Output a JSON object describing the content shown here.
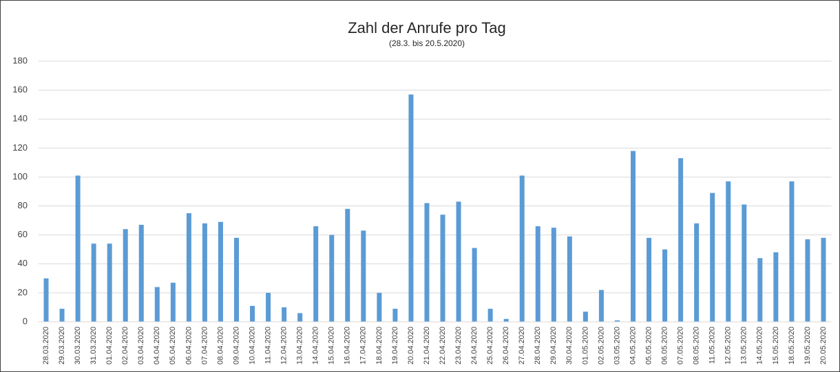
{
  "chart_data": {
    "type": "bar",
    "title": "Zahl der Anrufe pro Tag",
    "subtitle": "(28.3. bis 20.5.2020)",
    "categories": [
      "28.03.2020",
      "29.03.2020",
      "30.03.2020",
      "31.03.2020",
      "01.04.2020",
      "02.04.2020",
      "03.04.2020",
      "04.04.2020",
      "05.04.2020",
      "06.04.2020",
      "07.04.2020",
      "08.04.2020",
      "09.04.2020",
      "10.04.2020",
      "11.04.2020",
      "12.04.2020",
      "13.04.2020",
      "14.04.2020",
      "15.04.2020",
      "16.04.2020",
      "17.04.2020",
      "18.04.2020",
      "19.04.2020",
      "20.04.2020",
      "21.04.2020",
      "22.04.2020",
      "23.04.2020",
      "24.04.2020",
      "25.04.2020",
      "26.04.2020",
      "27.04.2020",
      "28.04.2020",
      "29.04.2020",
      "30.04.2020",
      "01.05.2020",
      "02.05.2020",
      "03.05.2020",
      "04.05.2020",
      "05.05.2020",
      "06.05.2020",
      "07.05.2020",
      "08.05.2020",
      "11.05.2020",
      "12.05.2020",
      "13.05.2020",
      "14.05.2020",
      "15.05.2020",
      "18.05.2020",
      "19.05.2020",
      "20.05.2020"
    ],
    "values": [
      30,
      9,
      101,
      54,
      54,
      64,
      67,
      24,
      27,
      75,
      68,
      69,
      58,
      11,
      20,
      10,
      6,
      66,
      60,
      78,
      63,
      20,
      9,
      157,
      82,
      74,
      83,
      51,
      9,
      2,
      101,
      66,
      65,
      59,
      7,
      22,
      1,
      118,
      58,
      50,
      113,
      68,
      89,
      97,
      81,
      44,
      48,
      97,
      57,
      58
    ],
    "color": "#5b9bd5",
    "ylim": [
      0,
      180
    ],
    "yticks": [
      0,
      20,
      40,
      60,
      80,
      100,
      120,
      140,
      160,
      180
    ],
    "grid": true
  }
}
